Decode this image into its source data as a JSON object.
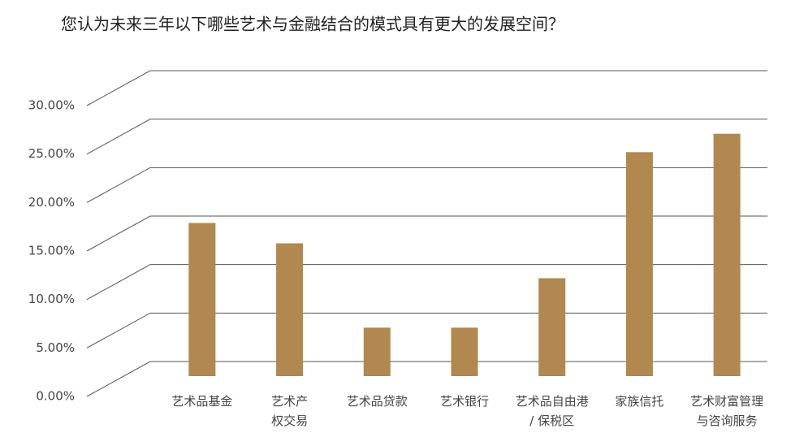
{
  "chart_data": {
    "type": "bar",
    "title": "您认为未来三年以下哪些艺术与金融结合的模式具有更大的发展空间？",
    "categories": [
      [
        "艺术品基金"
      ],
      [
        "艺术产",
        "权交易"
      ],
      [
        "艺术品贷款"
      ],
      [
        "艺术银行"
      ],
      [
        "艺术品自由港",
        "/ 保税区"
      ],
      [
        "家族信托"
      ],
      [
        "艺术财富管理",
        "与咨询服务"
      ]
    ],
    "values": [
      15.8,
      13.7,
      5.0,
      5.0,
      10.1,
      23.1,
      25.0
    ],
    "color": "#b08850",
    "ylim": [
      0,
      30
    ],
    "yticks": [
      {
        "value": 0,
        "label": "0.00%"
      },
      {
        "value": 5,
        "label": "5.00%"
      },
      {
        "value": 10,
        "label": "10.00%"
      },
      {
        "value": 15,
        "label": "15.00%"
      },
      {
        "value": 20,
        "label": "20.00%"
      },
      {
        "value": 25,
        "label": "25.00%"
      },
      {
        "value": 30,
        "label": "30.00%"
      }
    ],
    "grid": true
  }
}
